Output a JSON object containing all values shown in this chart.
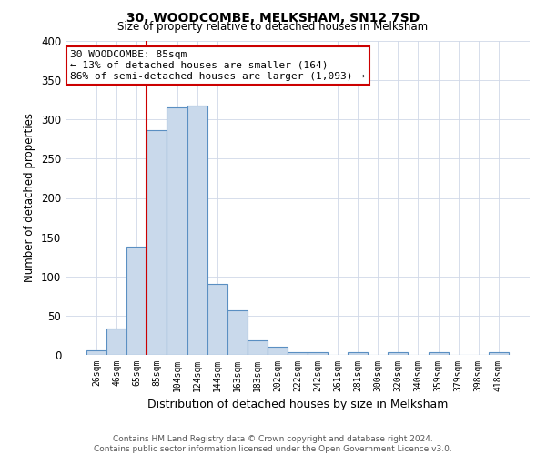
{
  "title": "30, WOODCOMBE, MELKSHAM, SN12 7SD",
  "subtitle": "Size of property relative to detached houses in Melksham",
  "xlabel": "Distribution of detached houses by size in Melksham",
  "ylabel": "Number of detached properties",
  "bin_labels": [
    "26sqm",
    "46sqm",
    "65sqm",
    "85sqm",
    "104sqm",
    "124sqm",
    "144sqm",
    "163sqm",
    "183sqm",
    "202sqm",
    "222sqm",
    "242sqm",
    "261sqm",
    "281sqm",
    "300sqm",
    "320sqm",
    "340sqm",
    "359sqm",
    "379sqm",
    "398sqm",
    "418sqm"
  ],
  "bar_values": [
    6,
    34,
    138,
    286,
    315,
    318,
    90,
    57,
    18,
    10,
    4,
    3,
    0,
    4,
    0,
    3,
    0,
    3,
    0,
    0,
    3
  ],
  "bar_color": "#c9d9eb",
  "bar_edge_color": "#5a8fc2",
  "vline_x_index": 3,
  "vline_color": "#cc0000",
  "annotation_line1": "30 WOODCOMBE: 85sqm",
  "annotation_line2": "← 13% of detached houses are smaller (164)",
  "annotation_line3": "86% of semi-detached houses are larger (1,093) →",
  "annotation_box_color": "#ffffff",
  "annotation_box_edge": "#cc0000",
  "ylim": [
    0,
    400
  ],
  "yticks": [
    0,
    50,
    100,
    150,
    200,
    250,
    300,
    350,
    400
  ],
  "footer_line1": "Contains HM Land Registry data © Crown copyright and database right 2024.",
  "footer_line2": "Contains public sector information licensed under the Open Government Licence v3.0.",
  "bg_color": "#ffffff",
  "grid_color": "#d0d8e8"
}
